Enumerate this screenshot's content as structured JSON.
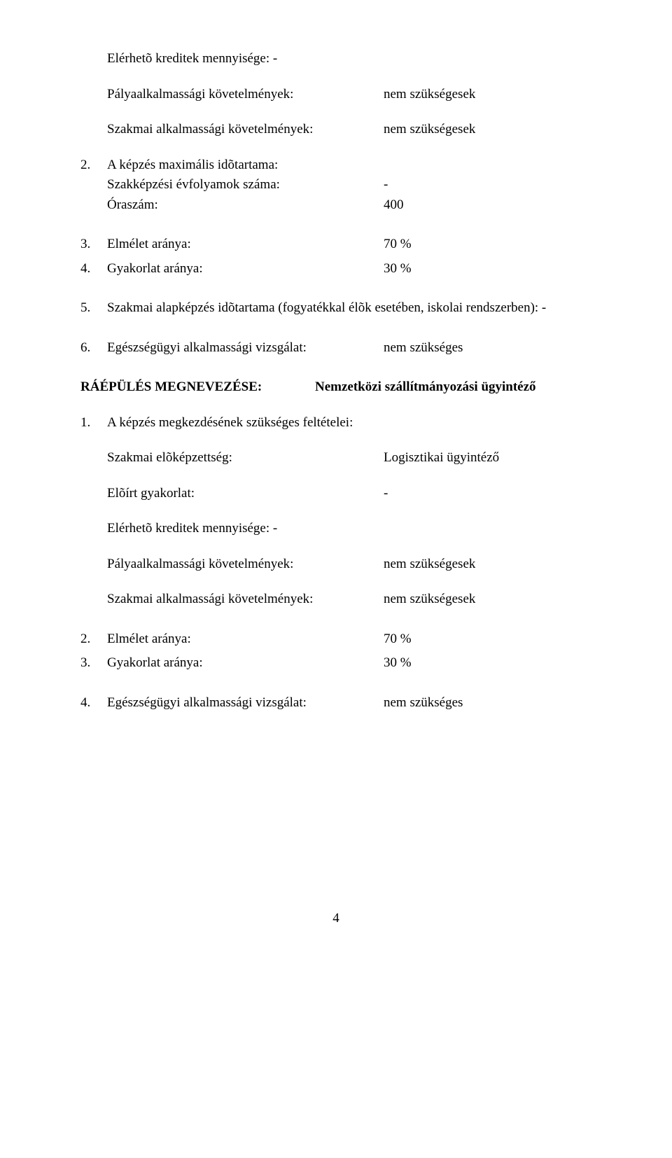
{
  "top": {
    "credits": "Elérhetõ kreditek mennyisége: -",
    "p_req_label": "Pályaalkalmassági követelmények:",
    "p_req_value": "nem szükségesek",
    "s_req_label": "Szakmai alkalmassági követelmények:",
    "s_req_value": "nem szükségesek"
  },
  "n2": {
    "num": "2.",
    "l1_label": "A képzés maximális idõtartama:",
    "l2_label": "Szakképzési évfolyamok száma:",
    "l2_value": "-",
    "l3_label": "Óraszám:",
    "l3_value": "400"
  },
  "n3": {
    "num": "3.",
    "label": "Elmélet aránya:",
    "value": "70 %"
  },
  "n4": {
    "num": "4.",
    "label": "Gyakorlat aránya:",
    "value": "30 %"
  },
  "n5": {
    "num": "5.",
    "text": "Szakmai alapképzés idõtartama (fogyatékkal élõk esetében, iskolai rendszerben): -"
  },
  "n6": {
    "num": "6.",
    "label": "Egészségügyi alkalmassági vizsgálat:",
    "value": "nem szükséges"
  },
  "heading": {
    "label": "RÁÉPÜLÉS MEGNEVEZÉSE:",
    "value": "Nemzetközi szállítmányozási ügyintéző"
  },
  "m1": {
    "num": "1.",
    "title": "A képzés megkezdésének szükséges feltételei:",
    "prereq_label": "Szakmai elõképzettség:",
    "prereq_value": "Logisztikai ügyintéző",
    "pract_label": "Elõírt gyakorlat:",
    "pract_value": "-",
    "credits": "Elérhetõ kreditek mennyisége: -",
    "p_req_label": "Pályaalkalmassági követelmények:",
    "p_req_value": "nem szükségesek",
    "s_req_label": "Szakmai alkalmassági követelmények:",
    "s_req_value": "nem szükségesek"
  },
  "m2": {
    "num": "2.",
    "label": "Elmélet aránya:",
    "value": "70 %"
  },
  "m3": {
    "num": "3.",
    "label": "Gyakorlat aránya:",
    "value": "30 %"
  },
  "m4": {
    "num": "4.",
    "label": "Egészségügyi alkalmassági vizsgálat:",
    "value": "nem szükséges"
  },
  "page": "4"
}
